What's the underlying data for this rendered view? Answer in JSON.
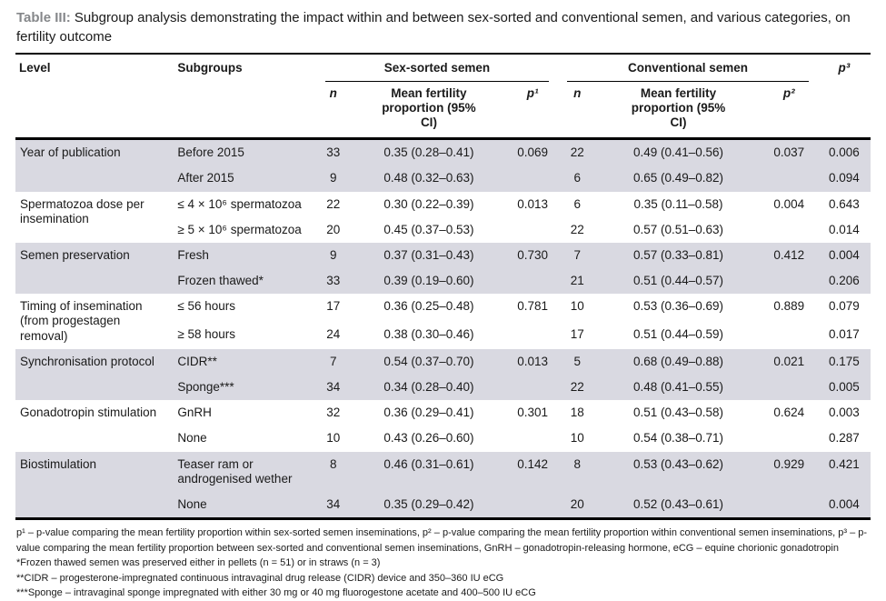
{
  "colors": {
    "row_shade": "#d9d9e1",
    "title_label": "#85878a",
    "text": "#1a1a1a",
    "rule": "#000000"
  },
  "title": {
    "label": "Table III:",
    "text": "Subgroup analysis demonstrating the impact within and between sex-sorted and conventional semen, and various categories, on fertility outcome"
  },
  "table": {
    "header": {
      "level": "Level",
      "subgroups": "Subgroups",
      "sex_sorted": "Sex-sorted semen",
      "conventional": "Conventional semen",
      "n": "n",
      "mean_ci": "Mean fertility proportion (95% CI)",
      "p1": "p¹",
      "p2": "p²",
      "p3": "p³"
    },
    "groups": [
      {
        "level": "Year of publication",
        "rows": [
          {
            "subgroup": "Before 2015",
            "n1": "33",
            "ci1": "0.35 (0.28–0.41)",
            "p1": "0.069",
            "n2": "22",
            "ci2": "0.49 (0.41–0.56)",
            "p2": "0.037",
            "p3": "0.006"
          },
          {
            "subgroup": "After 2015",
            "n1": "9",
            "ci1": "0.48 (0.32–0.63)",
            "p1": "",
            "n2": "6",
            "ci2": "0.65 (0.49–0.82)",
            "p2": "",
            "p3": "0.094"
          }
        ]
      },
      {
        "level": "Spermatozoa dose per insemination",
        "rows": [
          {
            "subgroup": "≤ 4 × 10⁶ spermatozoa",
            "n1": "22",
            "ci1": "0.30 (0.22–0.39)",
            "p1": "0.013",
            "n2": "6",
            "ci2": "0.35 (0.11–0.58)",
            "p2": "0.004",
            "p3": "0.643"
          },
          {
            "subgroup": "≥ 5 × 10⁶ spermatozoa",
            "n1": "20",
            "ci1": "0.45 (0.37–0.53)",
            "p1": "",
            "n2": "22",
            "ci2": "0.57 (0.51–0.63)",
            "p2": "",
            "p3": "0.014"
          }
        ]
      },
      {
        "level": "Semen preservation",
        "rows": [
          {
            "subgroup": "Fresh",
            "n1": "9",
            "ci1": "0.37 (0.31–0.43)",
            "p1": "0.730",
            "n2": "7",
            "ci2": "0.57 (0.33–0.81)",
            "p2": "0.412",
            "p3": "0.004"
          },
          {
            "subgroup": "Frozen thawed*",
            "n1": "33",
            "ci1": "0.39 (0.19–0.60)",
            "p1": "",
            "n2": "21",
            "ci2": "0.51 (0.44–0.57)",
            "p2": "",
            "p3": "0.206"
          }
        ]
      },
      {
        "level": "Timing of insemination (from progestagen removal)",
        "rows": [
          {
            "subgroup": "≤ 56 hours",
            "n1": "17",
            "ci1": "0.36 (0.25–0.48)",
            "p1": "0.781",
            "n2": "10",
            "ci2": "0.53 (0.36–0.69)",
            "p2": "0.889",
            "p3": "0.079"
          },
          {
            "subgroup": "≥ 58 hours",
            "n1": "24",
            "ci1": "0.38 (0.30–0.46)",
            "p1": "",
            "n2": "17",
            "ci2": "0.51 (0.44–0.59)",
            "p2": "",
            "p3": "0.017"
          }
        ]
      },
      {
        "level": "Synchronisation protocol",
        "rows": [
          {
            "subgroup": "CIDR**",
            "n1": "7",
            "ci1": "0.54 (0.37–0.70)",
            "p1": "0.013",
            "n2": "5",
            "ci2": "0.68 (0.49–0.88)",
            "p2": "0.021",
            "p3": "0.175"
          },
          {
            "subgroup": "Sponge***",
            "n1": "34",
            "ci1": "0.34 (0.28–0.40)",
            "p1": "",
            "n2": "22",
            "ci2": "0.48 (0.41–0.55)",
            "p2": "",
            "p3": "0.005"
          }
        ]
      },
      {
        "level": "Gonadotropin stimulation",
        "rows": [
          {
            "subgroup": "GnRH",
            "n1": "32",
            "ci1": "0.36 (0.29–0.41)",
            "p1": "0.301",
            "n2": "18",
            "ci2": "0.51 (0.43–0.58)",
            "p2": "0.624",
            "p3": "0.003"
          },
          {
            "subgroup": "None",
            "n1": "10",
            "ci1": "0.43 (0.26–0.60)",
            "p1": "",
            "n2": "10",
            "ci2": "0.54 (0.38–0.71)",
            "p2": "",
            "p3": "0.287"
          }
        ]
      },
      {
        "level": "Biostimulation",
        "rows": [
          {
            "subgroup": "Teaser ram or androgenised wether",
            "n1": "8",
            "ci1": "0.46 (0.31–0.61)",
            "p1": "0.142",
            "n2": "8",
            "ci2": "0.53 (0.43–0.62)",
            "p2": "0.929",
            "p3": "0.421"
          },
          {
            "subgroup": "None",
            "n1": "34",
            "ci1": "0.35 (0.29–0.42)",
            "p1": "",
            "n2": "20",
            "ci2": "0.52 (0.43–0.61)",
            "p2": "",
            "p3": "0.004"
          }
        ]
      }
    ]
  },
  "footnotes": [
    "p¹ – p-value comparing the mean fertility proportion within sex-sorted semen inseminations, p² – p-value comparing the mean fertility proportion within conventional semen inseminations, p³ – p-value comparing the mean fertility proportion between sex-sorted and conventional semen inseminations, GnRH – gonadotropin-releasing hormone, eCG – equine chorionic gonadotropin",
    "*Frozen thawed semen was preserved either in pellets (n = 51) or in straws (n = 3)",
    "**CIDR – progesterone-impregnated continuous intravaginal drug release (CIDR) device and 350–360 IU eCG",
    "***Sponge – intravaginal sponge impregnated with either 30 mg or 40 mg fluorogestone acetate and 400–500 IU eCG"
  ]
}
